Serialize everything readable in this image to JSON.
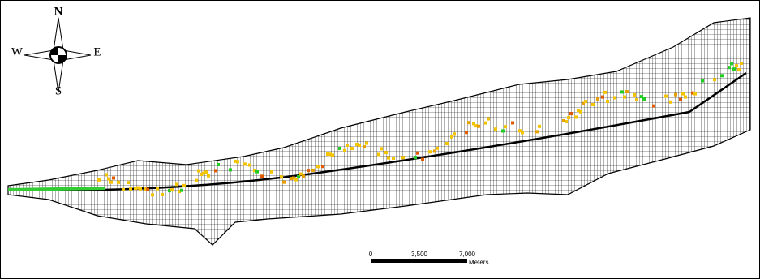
{
  "compass": {
    "north": "N",
    "south": "S",
    "west": "W",
    "east": "E"
  },
  "scale_bar": {
    "labels": [
      "0",
      "3,500",
      "7,000"
    ],
    "unit": "Meters"
  }
}
